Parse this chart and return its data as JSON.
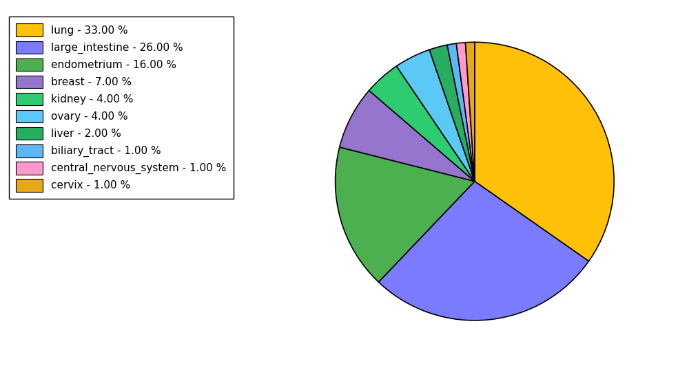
{
  "labels": [
    "lung",
    "large_intestine",
    "endometrium",
    "breast",
    "kidney",
    "ovary",
    "liver",
    "biliary_tract",
    "central_nervous_system",
    "cervix"
  ],
  "values": [
    33,
    26,
    16,
    7,
    4,
    4,
    2,
    1,
    1,
    1
  ],
  "colors": [
    "#FFC107",
    "#7B7BFF",
    "#4CAF50",
    "#9575CD",
    "#2ECC71",
    "#5BC8F5",
    "#27AE60",
    "#5BB8F5",
    "#FF99CC",
    "#E6A817"
  ],
  "legend_labels": [
    "lung - 33.00 %",
    "large_intestine - 26.00 %",
    "endometrium - 16.00 %",
    "breast - 7.00 %",
    "kidney - 4.00 %",
    "ovary - 4.00 %",
    "liver - 2.00 %",
    "biliary_tract - 1.00 %",
    "central_nervous_system - 1.00 %",
    "cervix - 1.00 %"
  ],
  "figsize": [
    10.13,
    5.38
  ],
  "dpi": 100,
  "startangle": 90
}
